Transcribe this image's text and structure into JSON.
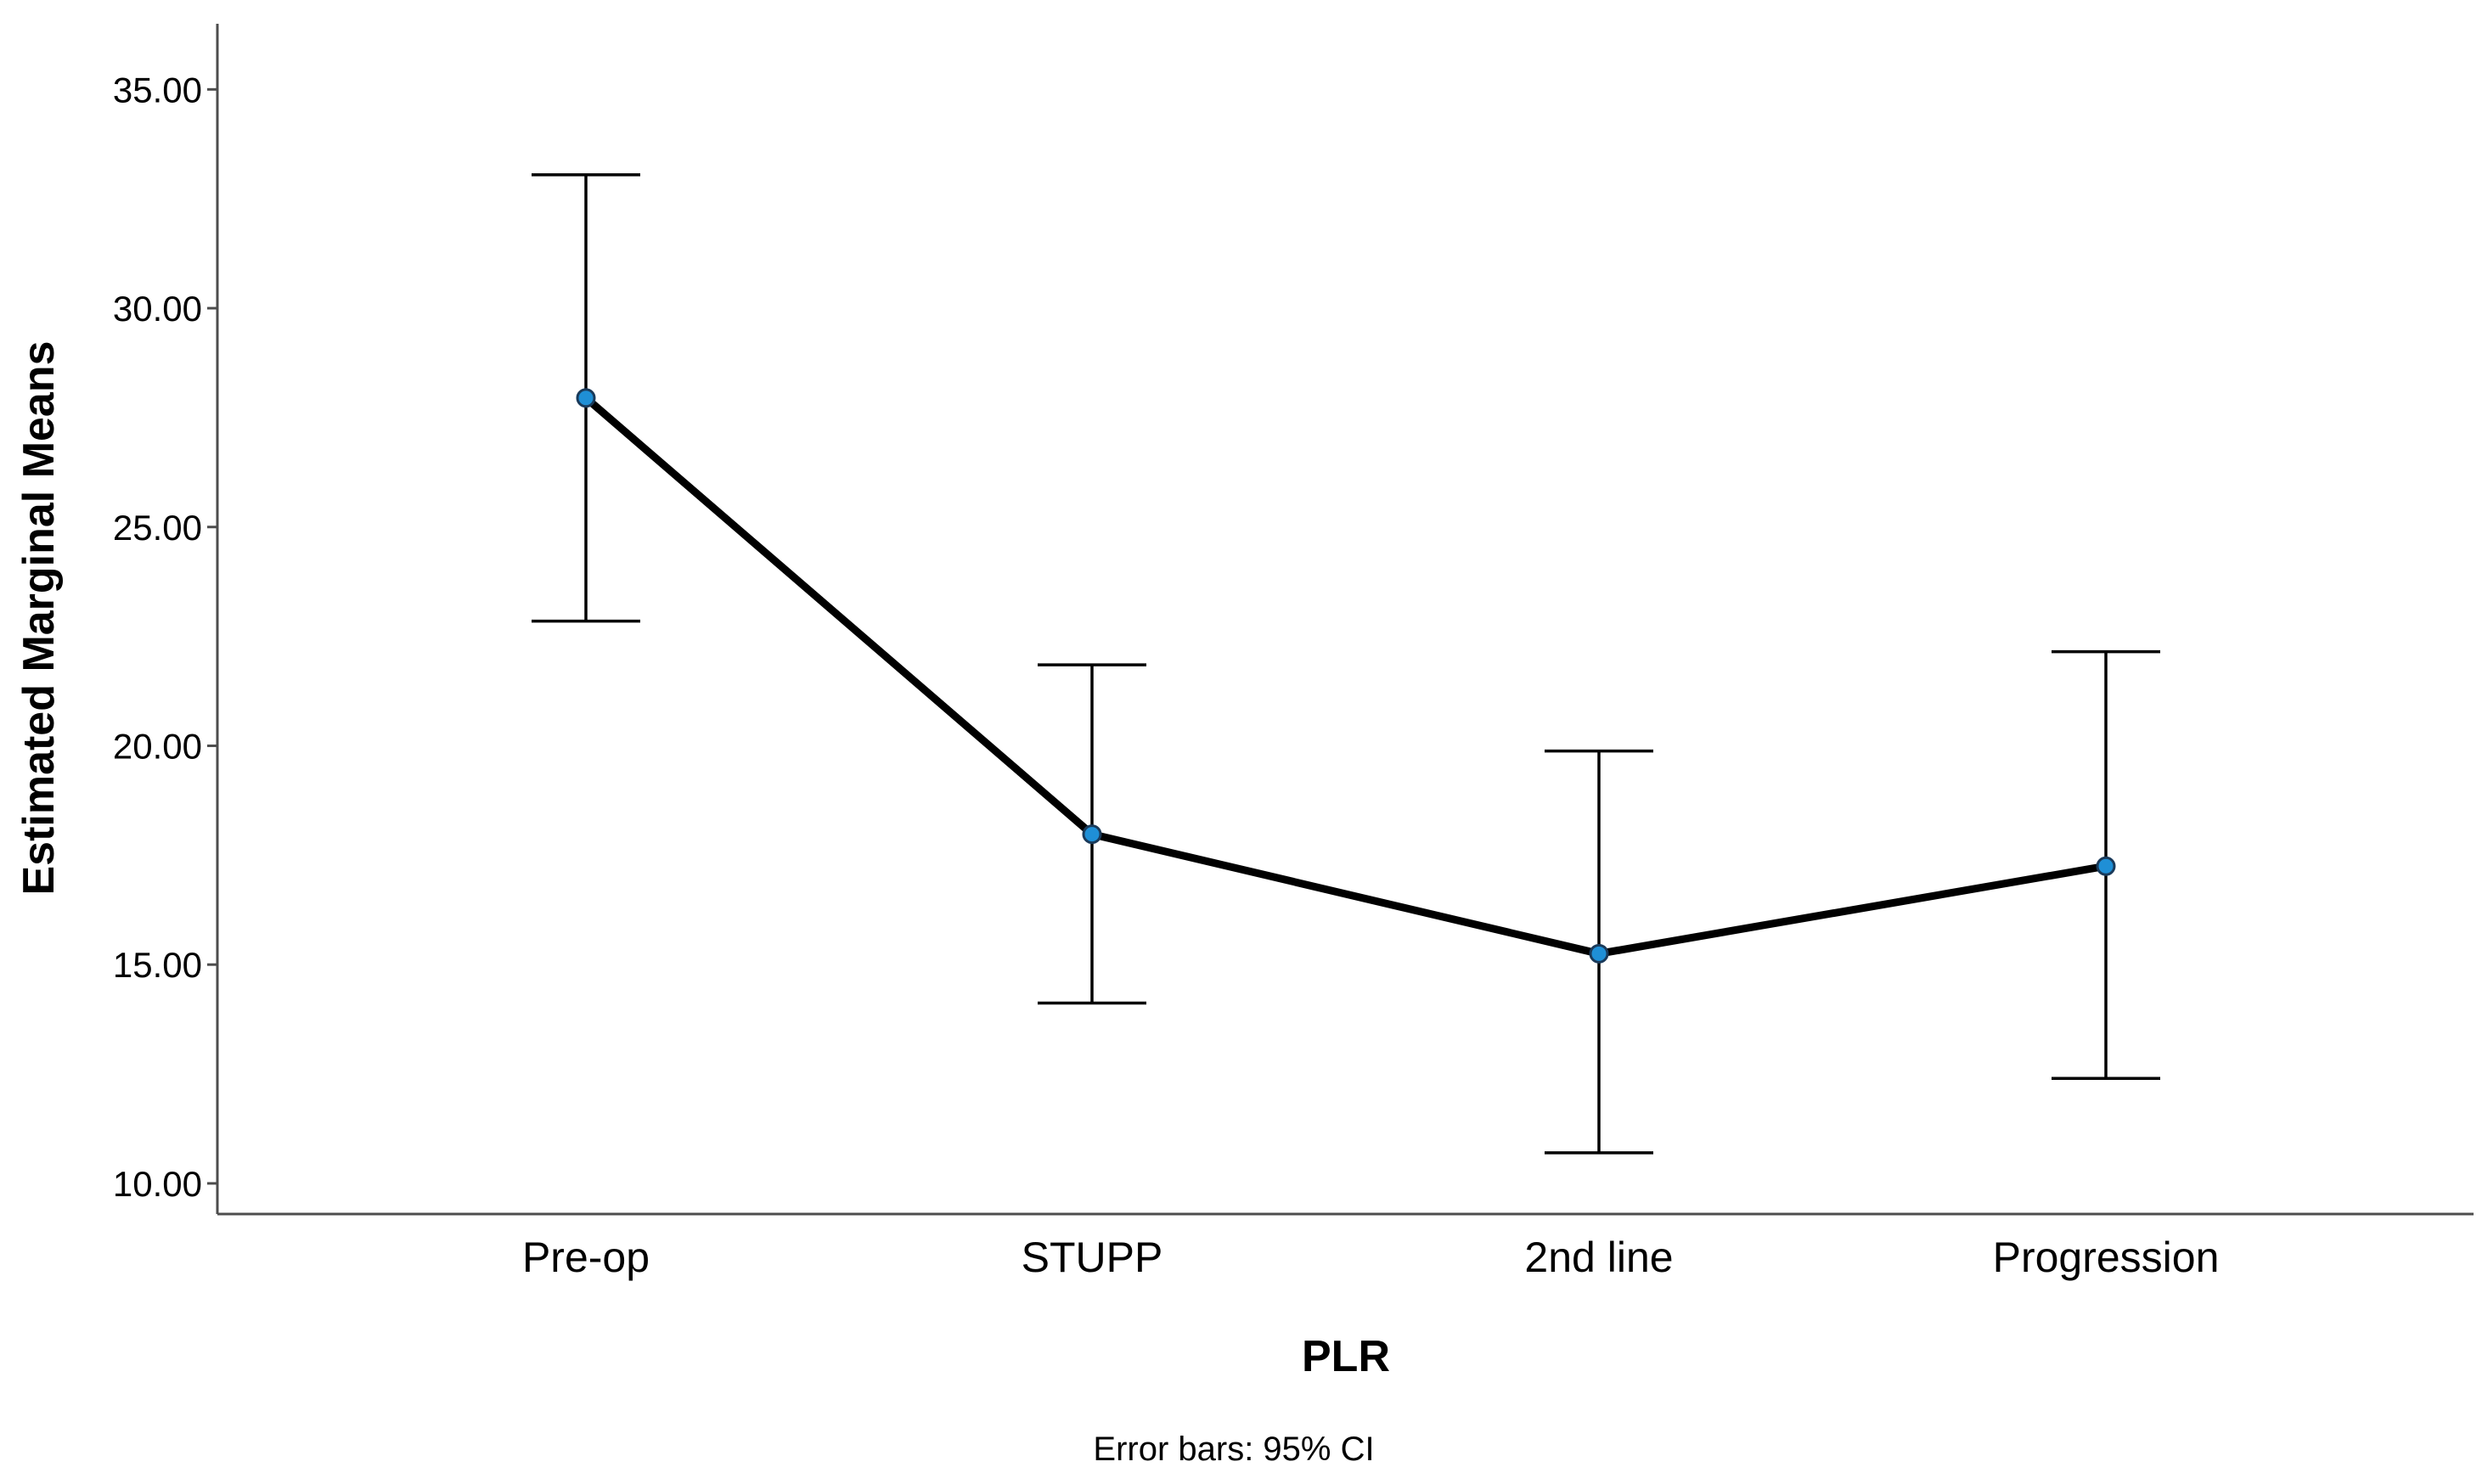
{
  "chart_data": {
    "type": "line",
    "title": "",
    "xlabel": "PLR",
    "ylabel": "Estimated Marginal Means",
    "footnote": "Error bars: 95% CI",
    "categories": [
      "Pre-op",
      "STUPP",
      "2nd line",
      "Progression"
    ],
    "series": [
      {
        "name": "Estimated Marginal Means",
        "values": [
          27.95,
          17.98,
          15.25,
          17.25
        ],
        "ci_lower": [
          22.85,
          14.12,
          10.7,
          12.4
        ],
        "ci_upper": [
          33.05,
          21.85,
          19.88,
          22.15
        ]
      }
    ],
    "ylim": [
      9.3,
      36.5
    ],
    "yticks": [
      10,
      15,
      20,
      25,
      30,
      35
    ],
    "ytick_labels": [
      "10.00",
      "15.00",
      "20.00",
      "25.00",
      "30.00",
      "35.00"
    ],
    "grid": false,
    "colors": {
      "line": "#000000",
      "marker_fill": "#1f8fd6",
      "marker_edge": "#1a3a5a",
      "error_bar": "#000000",
      "axis": "#4d4d4d"
    }
  }
}
